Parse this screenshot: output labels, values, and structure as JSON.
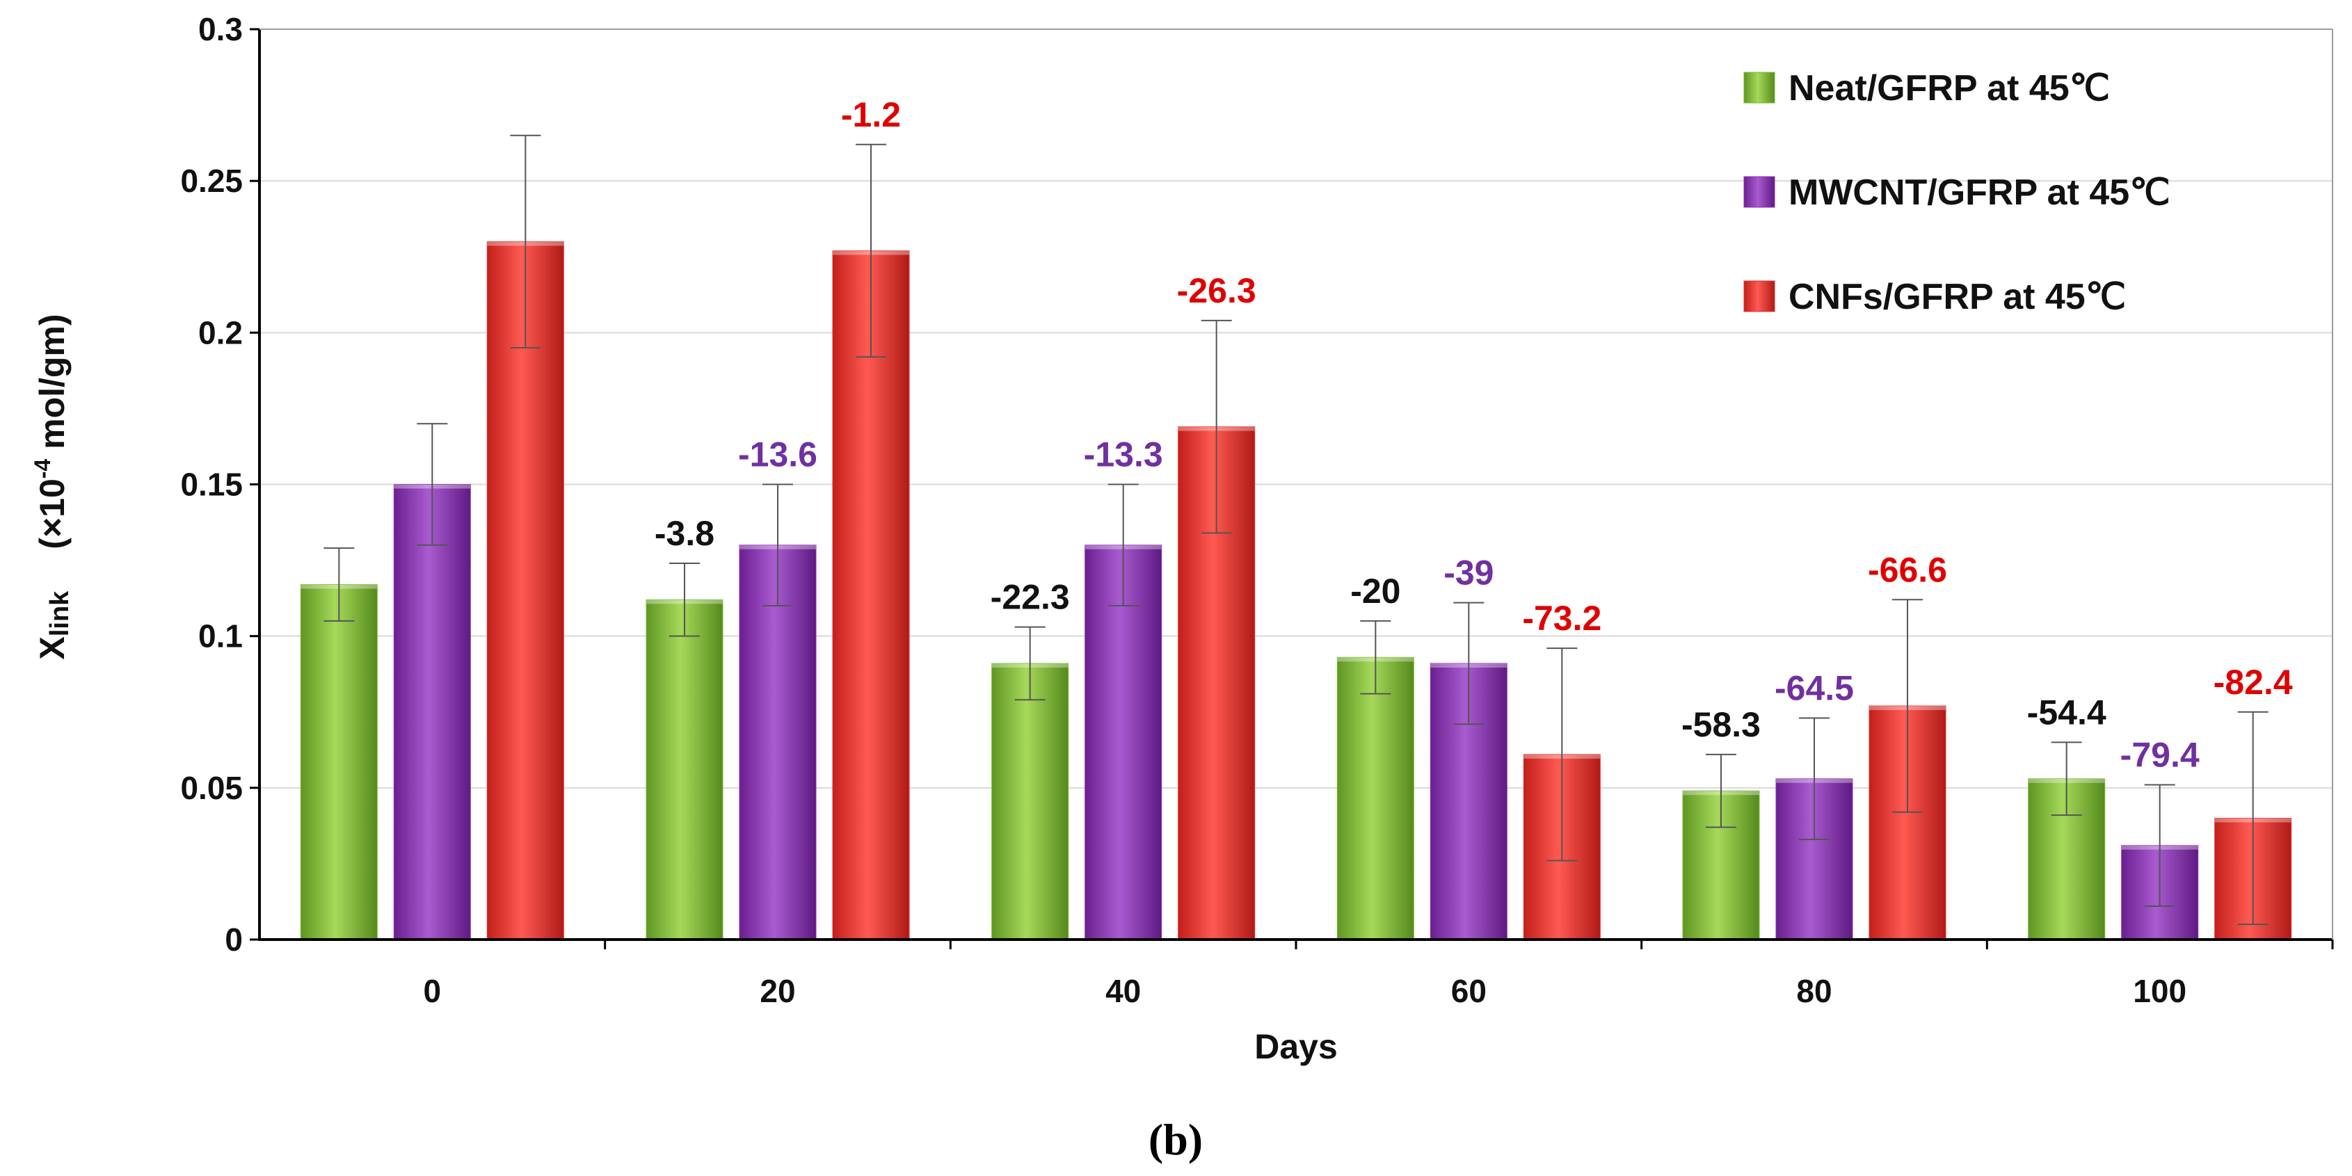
{
  "chart_data": {
    "type": "bar",
    "categories": [
      "0",
      "20",
      "40",
      "60",
      "80",
      "100"
    ],
    "xlabel": "Days",
    "ylabel_main": "X",
    "ylabel_sub": "link",
    "ylabel_units_prefix": "(×10",
    "ylabel_units_exp": "-4",
    "ylabel_units_suffix": " mol/gm)",
    "ylim": [
      0,
      0.3
    ],
    "yticks": [
      "0",
      "0.05",
      "0.1",
      "0.15",
      "0.2",
      "0.25",
      "0.3"
    ],
    "grid": true,
    "legend_position": "top-right",
    "caption": "(b)",
    "series": [
      {
        "name": "Neat/GFRP at 45℃",
        "color": "#7ab82e",
        "label_color": "#111111",
        "values": [
          0.117,
          0.112,
          0.091,
          0.093,
          0.049,
          0.053
        ],
        "errors": [
          0.012,
          0.012,
          0.012,
          0.012,
          0.012,
          0.012
        ],
        "labels": [
          "",
          "-3.8",
          "-22.3",
          "-20",
          "-58.3",
          "-54.4"
        ]
      },
      {
        "name": "MWCNT/GFRP at 45℃",
        "color": "#8c2fb3",
        "label_color": "#7030a0",
        "values": [
          0.15,
          0.13,
          0.13,
          0.091,
          0.053,
          0.031
        ],
        "errors": [
          0.02,
          0.02,
          0.02,
          0.02,
          0.02,
          0.02
        ],
        "labels": [
          "",
          "-13.6",
          "-13.3",
          "-39",
          "-64.5",
          "-79.4"
        ]
      },
      {
        "name": "CNFs/GFRP at 45℃",
        "color": "#e8302c",
        "label_color": "#e00000",
        "values": [
          0.23,
          0.227,
          0.169,
          0.061,
          0.077,
          0.04
        ],
        "errors": [
          0.035,
          0.035,
          0.035,
          0.035,
          0.035,
          0.035
        ],
        "labels": [
          "",
          "-1.2",
          "-26.3",
          "-73.2",
          "-66.6",
          "-82.4"
        ]
      }
    ]
  }
}
